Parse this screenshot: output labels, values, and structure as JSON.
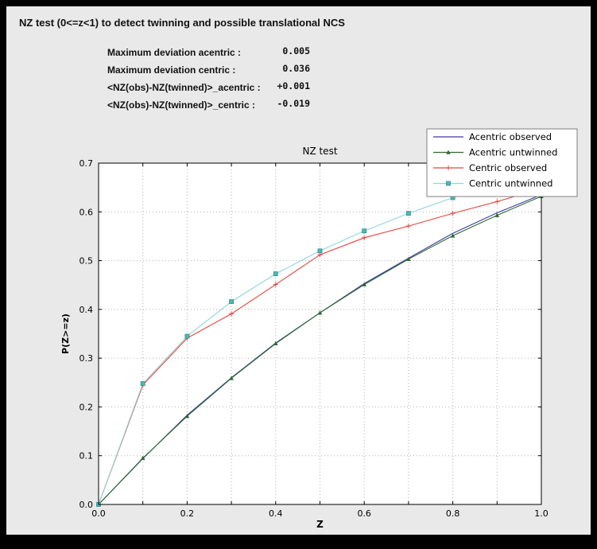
{
  "window": {
    "frame_color": "#000000",
    "panel_background": "#e9e9e9"
  },
  "header": {
    "title": "NZ test (0<=z<1) to detect twinning and possible translational NCS"
  },
  "stats": {
    "rows": [
      {
        "label": "Maximum deviation acentric :",
        "value": "0.005"
      },
      {
        "label": "Maximum deviation centric :",
        "value": "0.036"
      },
      {
        "label": "<NZ(obs)-NZ(twinned)>_acentric :",
        "value": "+0.001"
      },
      {
        "label": "<NZ(obs)-NZ(twinned)>_centric :",
        "value": "-0.019"
      }
    ]
  },
  "chart_data": {
    "type": "line",
    "title": "NZ test",
    "xlabel": "Z",
    "ylabel": "P(Z>=z)",
    "xlim": [
      0.0,
      1.0
    ],
    "ylim": [
      0.0,
      0.7
    ],
    "xtick_labels": [
      0.0,
      0.2,
      0.4,
      0.6,
      0.8,
      1.0
    ],
    "ytick_labels": [
      0.0,
      0.1,
      0.2,
      0.3,
      0.4,
      0.5,
      0.6,
      0.7
    ],
    "grid_x": [
      0.1,
      0.2,
      0.3,
      0.4,
      0.5,
      0.6,
      0.7,
      0.8,
      0.9
    ],
    "grid_y": [
      0.1,
      0.2,
      0.3,
      0.4,
      0.5,
      0.6
    ],
    "grid": true,
    "grid_style": "dotted",
    "grid_color": "#b0b0b0",
    "plot_background": "#ffffff",
    "legend_position": "upper right",
    "x": [
      0.0,
      0.1,
      0.2,
      0.3,
      0.4,
      0.5,
      0.6,
      0.7,
      0.8,
      0.9,
      1.0
    ],
    "series": [
      {
        "name": "Acentric observed",
        "color": "#3b3ba6",
        "marker": "none",
        "values": [
          0.0,
          0.094,
          0.183,
          0.26,
          0.331,
          0.393,
          0.453,
          0.505,
          0.556,
          0.598,
          0.635
        ]
      },
      {
        "name": "Acentric untwinned",
        "color": "#2f6b2f",
        "marker": "triangle",
        "values": [
          0.0,
          0.095,
          0.181,
          0.259,
          0.33,
          0.393,
          0.451,
          0.503,
          0.551,
          0.593,
          0.632
        ]
      },
      {
        "name": "Centric observed",
        "color": "#e8433c",
        "marker": "plus",
        "values": [
          0.0,
          0.245,
          0.341,
          0.391,
          0.451,
          0.512,
          0.547,
          0.571,
          0.597,
          0.621,
          0.648
        ]
      },
      {
        "name": "Centric untwinned",
        "color": "#90d5d5",
        "marker": "square",
        "marker_fill": "#52b7b7",
        "marker_edge": "#2f8f8f",
        "values": [
          0.0,
          0.248,
          0.345,
          0.416,
          0.473,
          0.52,
          0.561,
          0.597,
          0.629,
          0.657,
          0.683
        ]
      }
    ]
  }
}
